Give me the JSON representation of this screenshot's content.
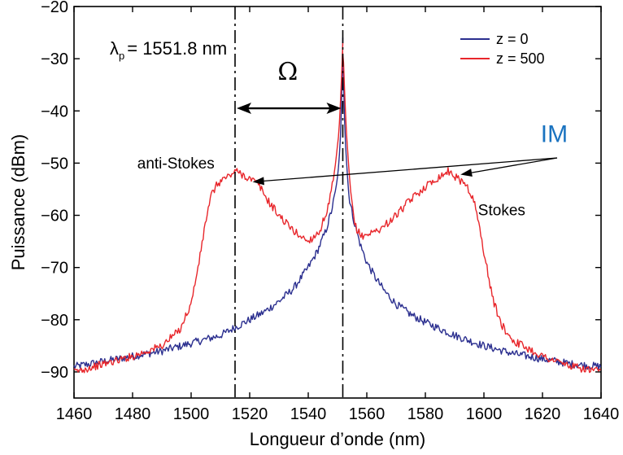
{
  "chart_data": {
    "type": "line",
    "title": "",
    "xlabel": "Longueur d’onde (nm)",
    "ylabel": "Puissance (dBm)",
    "xlim": [
      1460,
      1640
    ],
    "ylim": [
      -95,
      -20
    ],
    "xticks": [
      1460,
      1480,
      1500,
      1520,
      1540,
      1560,
      1580,
      1600,
      1620,
      1640
    ],
    "yticks": [
      -20,
      -30,
      -40,
      -50,
      -60,
      -70,
      -80,
      -90
    ],
    "ytick_labels": [
      "−20",
      "−30",
      "−40",
      "−50",
      "−60",
      "−70",
      "−80",
      "−90"
    ],
    "grid": false,
    "legend_position": "top-right",
    "series": [
      {
        "name": "z = 0",
        "color": "#2b2f8f",
        "x": [
          1460,
          1470,
          1480,
          1490,
          1500,
          1510,
          1515,
          1520,
          1525,
          1530,
          1535,
          1540,
          1543,
          1546,
          1548,
          1549.5,
          1550.5,
          1551,
          1551.5,
          1551.8,
          1552.1,
          1552.6,
          1553.2,
          1554,
          1556,
          1558,
          1560,
          1563,
          1566,
          1570,
          1575,
          1580,
          1590,
          1600,
          1610,
          1620,
          1630,
          1640
        ],
        "y": [
          -89,
          -88,
          -87,
          -86,
          -84.5,
          -83,
          -81.5,
          -80,
          -78.5,
          -76.5,
          -74,
          -70,
          -67,
          -63,
          -59,
          -55,
          -50,
          -45,
          -36,
          -26,
          -36,
          -45,
          -51,
          -57,
          -62,
          -66,
          -69,
          -72,
          -74.5,
          -77,
          -79,
          -80.5,
          -83,
          -85,
          -86.5,
          -87.5,
          -88.5,
          -89
        ]
      },
      {
        "name": "z = 500",
        "color": "#e8262b",
        "x": [
          1460,
          1470,
          1480,
          1490,
          1496,
          1500,
          1503,
          1505,
          1507,
          1509,
          1511,
          1513,
          1515,
          1517,
          1520,
          1523,
          1526,
          1530,
          1535,
          1540,
          1544,
          1547,
          1549,
          1550.5,
          1551.2,
          1551.8,
          1552.4,
          1553,
          1554.5,
          1556,
          1558,
          1561,
          1565,
          1570,
          1575,
          1580,
          1585,
          1588,
          1591,
          1594,
          1597,
          1600,
          1603,
          1606,
          1610,
          1620,
          1630,
          1640
        ],
        "y": [
          -90,
          -88.5,
          -87,
          -85,
          -82,
          -77,
          -68,
          -61,
          -56,
          -54,
          -53,
          -52.5,
          -51.5,
          -52,
          -53,
          -54,
          -57,
          -60,
          -63,
          -65,
          -63,
          -58,
          -52,
          -44,
          -36,
          -27,
          -36,
          -44,
          -56,
          -62,
          -64,
          -63.5,
          -62.5,
          -60,
          -57,
          -54.5,
          -52.5,
          -51.5,
          -53,
          -54,
          -58,
          -67,
          -76,
          -81,
          -84,
          -87,
          -89,
          -90
        ]
      }
    ],
    "vertical_lines": [
      1515,
      1551.8
    ],
    "annotations": [
      {
        "text": "anti-Stokes",
        "x": 1508,
        "y": -51
      },
      {
        "text": "Stokes",
        "x": 1598,
        "y": -60
      },
      {
        "text": "IM",
        "x": 1624,
        "y": -46,
        "color": "#1a73c0"
      },
      {
        "text": "Ω",
        "x": 1533,
        "y": -34
      }
    ],
    "pump_label": {
      "symbol": "λ",
      "subscript": "p",
      "value": "= 1551.8 nm"
    }
  }
}
